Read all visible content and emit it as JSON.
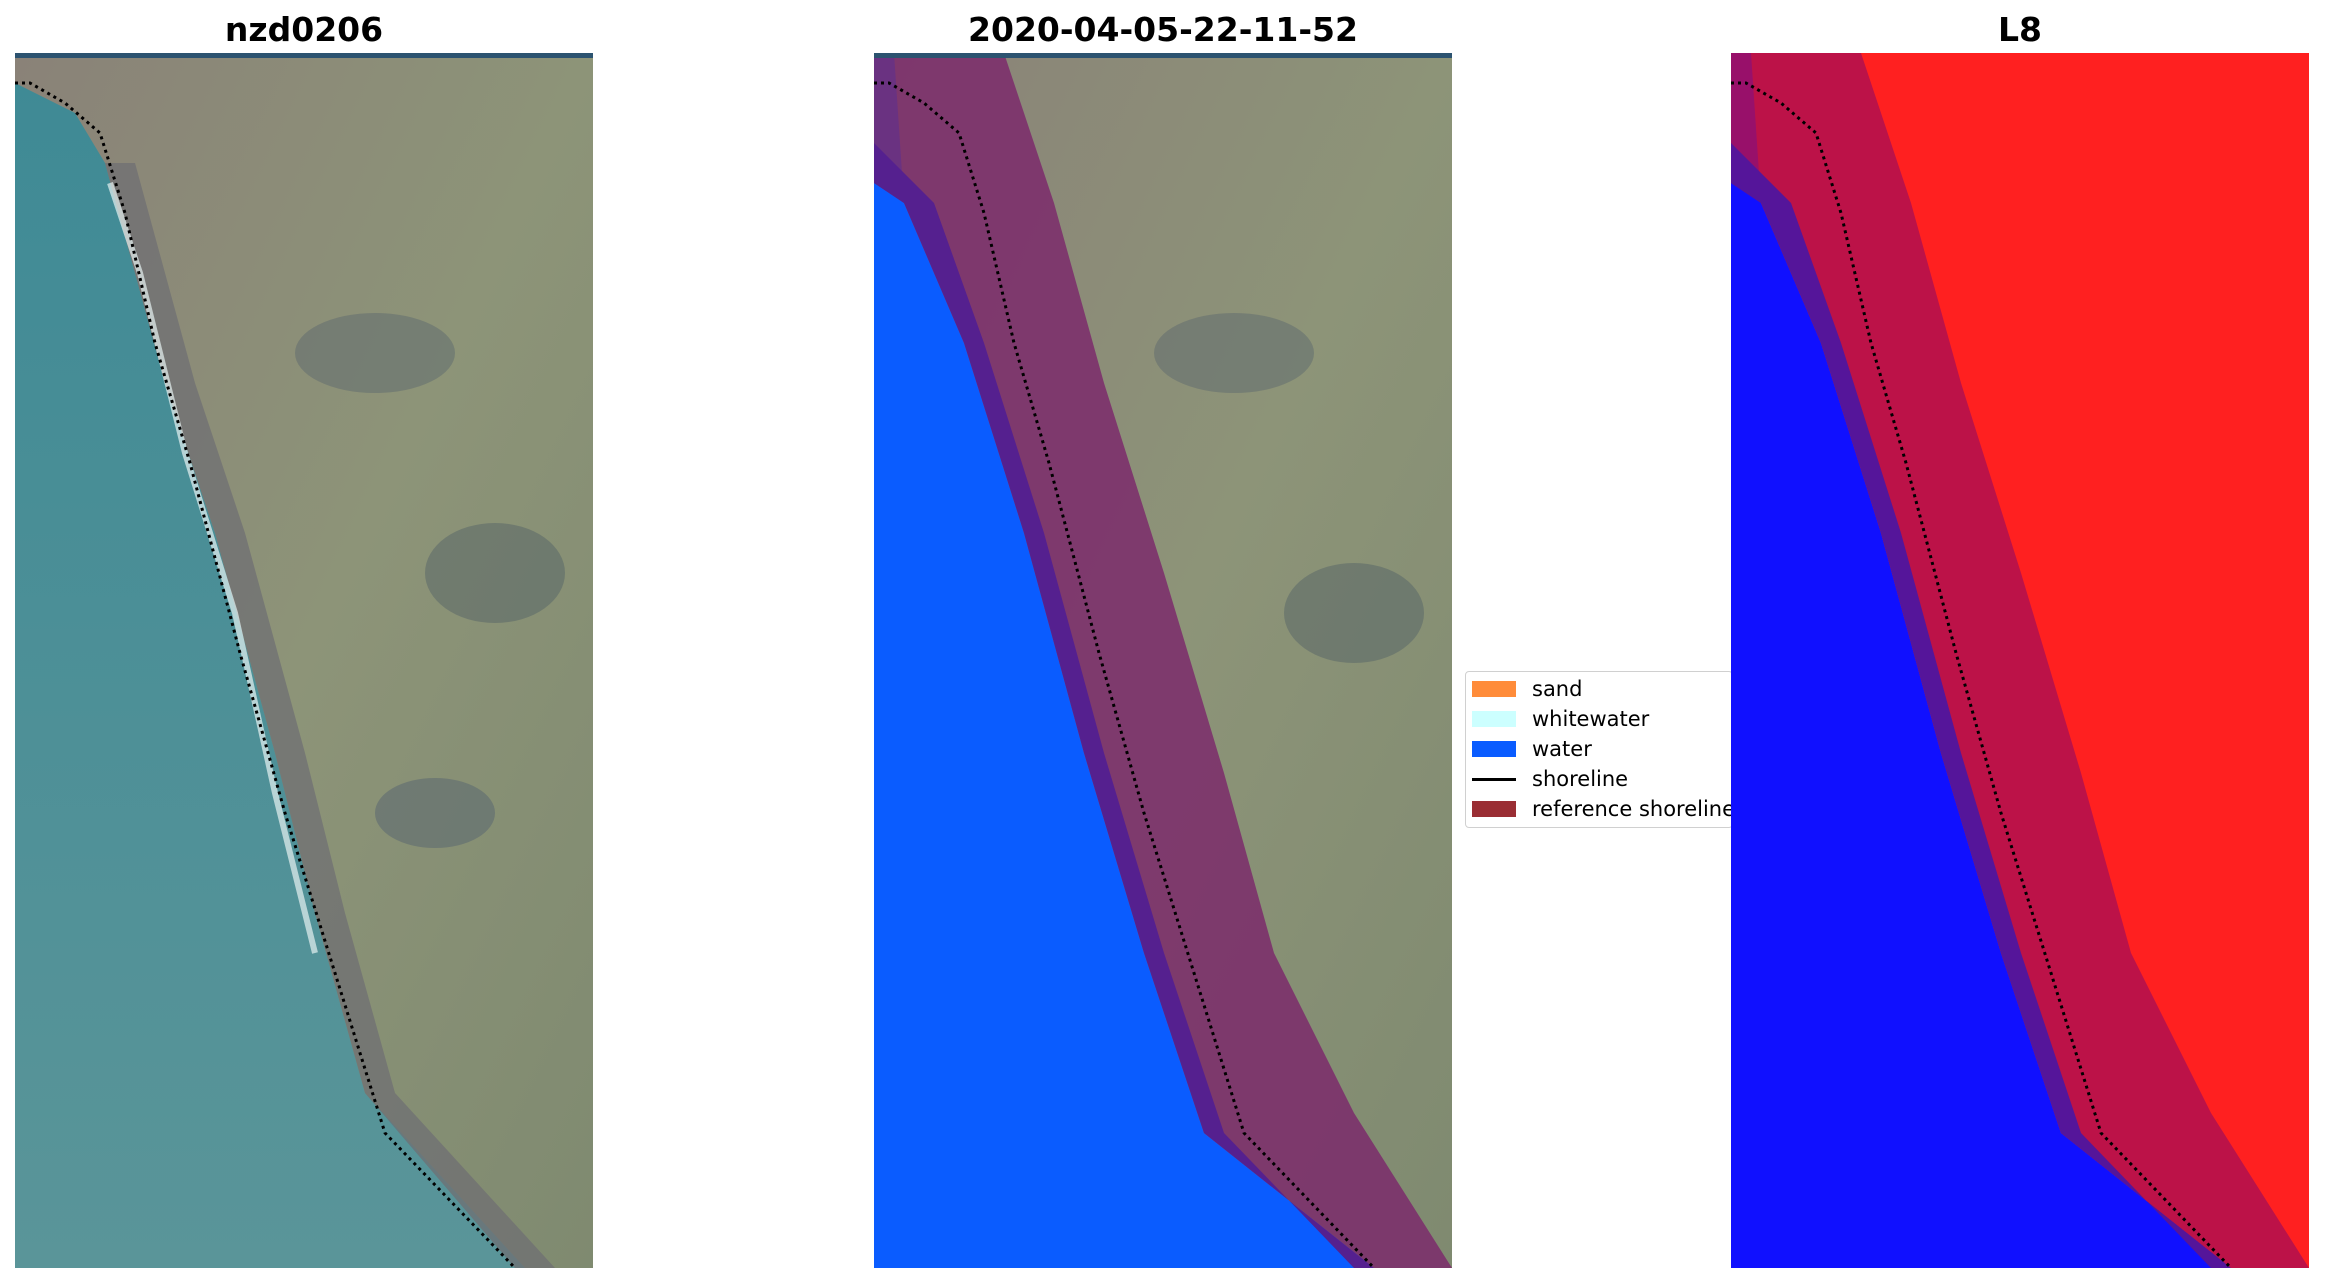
{
  "panels": [
    {
      "title": "nzd0206",
      "content": "true-color satellite image of coastline"
    },
    {
      "title": "2020-04-05-22-11-52",
      "content": "classified image with reference shoreline buffer"
    },
    {
      "title": "L8",
      "content": "index image with reference shoreline buffer"
    }
  ],
  "legend": {
    "items": [
      {
        "label": "sand",
        "color": "#ff8c3a",
        "kind": "patch"
      },
      {
        "label": "whitewater",
        "color": "#ccffff",
        "kind": "patch"
      },
      {
        "label": "water",
        "color": "#0a5cff",
        "kind": "patch"
      },
      {
        "label": "shoreline",
        "color": "#000000",
        "kind": "line"
      },
      {
        "label": "reference shoreline",
        "color": "#9a2e34",
        "kind": "patch"
      }
    ]
  },
  "colors": {
    "ocean": "#4f8d98",
    "land": "#8f8a7c",
    "water_class": "#0a5cff",
    "buffer": "#7b2a6b",
    "buffer_over_water": "#55208f",
    "index_high": "#ff1a1a",
    "index_low": "#1010ff"
  }
}
